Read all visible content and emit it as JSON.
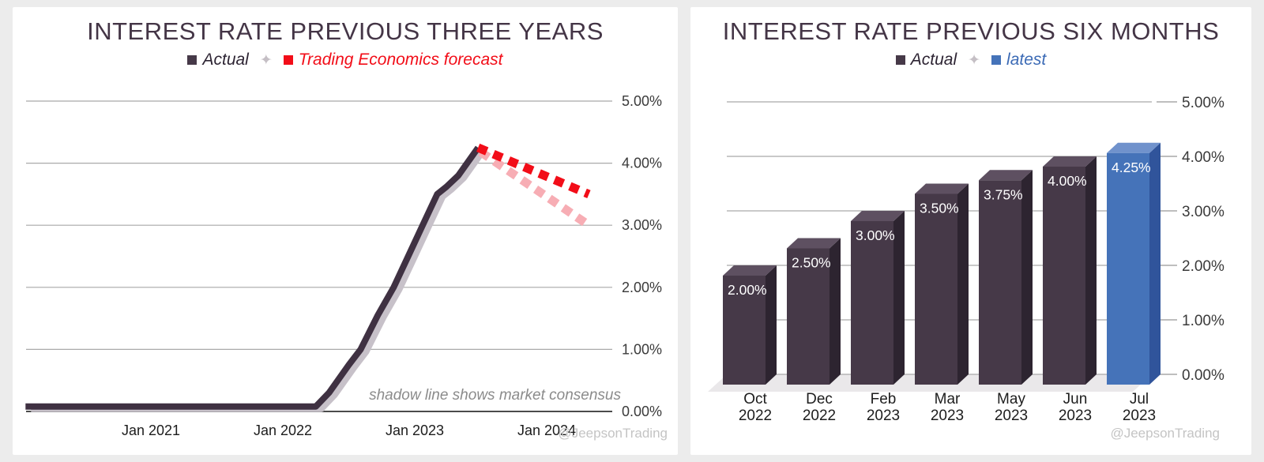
{
  "page": {
    "background": "#ececec",
    "panel_background": "#ffffff"
  },
  "left_chart": {
    "title": "INTEREST RATE PREVIOUS THREE YEARS",
    "legend": {
      "actual_label": "Actual",
      "actual_color": "#463948",
      "separator_icon": "✦",
      "forecast_label": "Trading Economics forecast",
      "forecast_color": "#f20d18"
    },
    "annotation": "shadow line shows market consensus",
    "watermark": "@JeepsonTrading",
    "chart_data": {
      "type": "line",
      "title": "INTEREST RATE PREVIOUS THREE YEARS",
      "ylim": [
        0,
        5
      ],
      "y_ticks": [
        "0.00%",
        "1.00%",
        "2.00%",
        "3.00%",
        "4.00%",
        "5.00%"
      ],
      "x_ticks": [
        {
          "label": "Jan 2021",
          "t": 2021
        },
        {
          "label": "Jan 2022",
          "t": 2022
        },
        {
          "label": "Jan 2023",
          "t": 2023
        },
        {
          "label": "Jan 2024",
          "t": 2024
        }
      ],
      "grid": true,
      "legend_position": "top",
      "series": [
        {
          "name": "Actual",
          "color": "#3f3142",
          "style": "solid",
          "width": 8,
          "points": [
            [
              2020.05,
              0.08
            ],
            [
              2022.25,
              0.08
            ],
            [
              2022.35,
              0.3
            ],
            [
              2022.5,
              0.75
            ],
            [
              2022.59,
              1.0
            ],
            [
              2022.72,
              1.55
            ],
            [
              2022.84,
              2.0
            ],
            [
              2022.95,
              2.5
            ],
            [
              2023.06,
              3.0
            ],
            [
              2023.17,
              3.5
            ],
            [
              2023.24,
              3.62
            ],
            [
              2023.33,
              3.8
            ],
            [
              2023.48,
              4.25
            ]
          ]
        },
        {
          "name": "Market consensus (shadow)",
          "color": "#c7c1c9",
          "style": "shadow",
          "width": 8,
          "offset": [
            7,
            3
          ],
          "points": "same-as-actual"
        },
        {
          "name": "Trading Economics forecast",
          "color": "#f20d18",
          "style": "dashed",
          "width": 11,
          "points": [
            [
              2023.48,
              4.25
            ],
            [
              2024.32,
              3.5
            ]
          ]
        },
        {
          "name": "Market consensus forecast",
          "color": "#f7adb4",
          "style": "dashed",
          "width": 11,
          "points": [
            [
              2023.5,
              4.18
            ],
            [
              2024.32,
              3.0
            ]
          ]
        }
      ]
    }
  },
  "right_chart": {
    "title": "INTEREST RATE PREVIOUS SIX MONTHS",
    "legend": {
      "actual_label": "Actual",
      "actual_color": "#463948",
      "separator_icon": "✦",
      "latest_label": "latest",
      "latest_color": "#4573b9"
    },
    "watermark": "@JeepsonTrading",
    "chart_data": {
      "type": "bar",
      "title": "INTEREST RATE PREVIOUS SIX MONTHS",
      "categories": [
        [
          "Oct",
          "2022"
        ],
        [
          "Dec",
          "2022"
        ],
        [
          "Feb",
          "2023"
        ],
        [
          "Mar",
          "2023"
        ],
        [
          "May",
          "2023"
        ],
        [
          "Jun",
          "2023"
        ],
        [
          "Jul",
          "2023"
        ]
      ],
      "values": [
        2.0,
        2.5,
        3.0,
        3.5,
        3.75,
        4.0,
        4.25
      ],
      "bar_labels": [
        "2.00%",
        "2.50%",
        "3.00%",
        "3.50%",
        "3.75%",
        "4.00%",
        "4.25%"
      ],
      "ylim": [
        0,
        5
      ],
      "y_ticks": [
        "0.00%",
        "1.00%",
        "2.00%",
        "3.00%",
        "4.00%",
        "5.00%"
      ],
      "grid": true,
      "bar_color": {
        "front": "#463948",
        "top": "#5e5061",
        "side": "#2d2430"
      },
      "latest_color": {
        "front": "#4573b9",
        "top": "#7092cc",
        "side": "#30549b"
      },
      "latest_index": 6,
      "floor_color": "#eae8ea"
    }
  }
}
